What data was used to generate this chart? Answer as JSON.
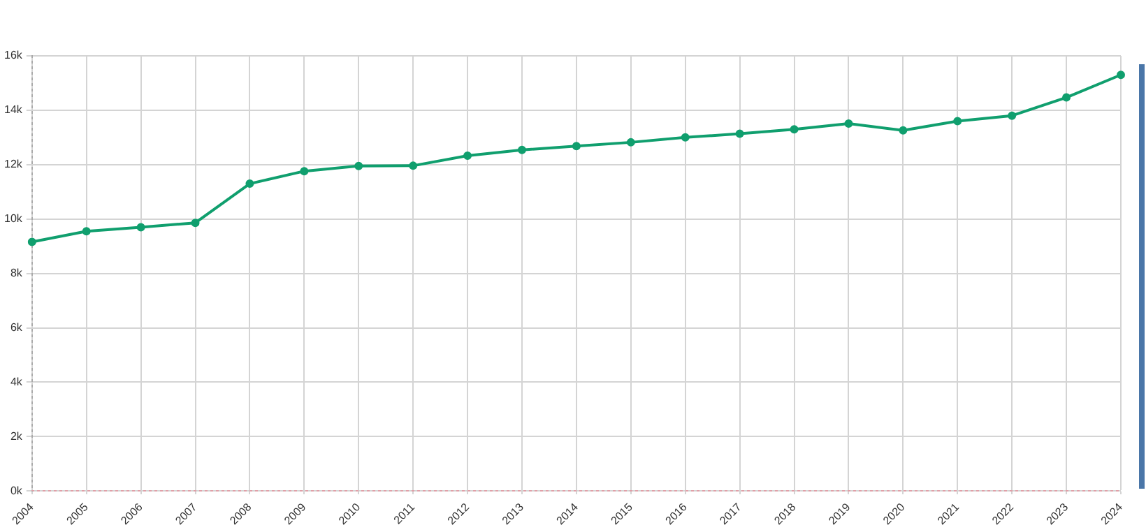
{
  "chart_data": {
    "type": "line",
    "categories": [
      "2004",
      "2005",
      "2006",
      "2007",
      "2008",
      "2009",
      "2010",
      "2011",
      "2012",
      "2013",
      "2014",
      "2015",
      "2016",
      "2017",
      "2018",
      "2019",
      "2020",
      "2021",
      "2022",
      "2023",
      "2024"
    ],
    "series": [
      {
        "color": "#109f6e",
        "values": [
          9160,
          9550,
          9700,
          9860,
          11300,
          11760,
          11950,
          11960,
          12330,
          12540,
          12680,
          12820,
          13000,
          13140,
          13300,
          13510,
          13260,
          13600,
          13800,
          14470,
          15300
        ]
      }
    ],
    "ylim": [
      0,
      16000
    ],
    "yticks": [
      {
        "value": 0,
        "label": "0k"
      },
      {
        "value": 2000,
        "label": "2k"
      },
      {
        "value": 4000,
        "label": "4k"
      },
      {
        "value": 6000,
        "label": "6k"
      },
      {
        "value": 8000,
        "label": "8k"
      },
      {
        "value": 10000,
        "label": "10k"
      },
      {
        "value": 12000,
        "label": "12k"
      },
      {
        "value": 14000,
        "label": "14k"
      },
      {
        "value": 16000,
        "label": "16k"
      }
    ],
    "grid": true,
    "legend": false,
    "marker": "circle",
    "line_style": "solid"
  }
}
